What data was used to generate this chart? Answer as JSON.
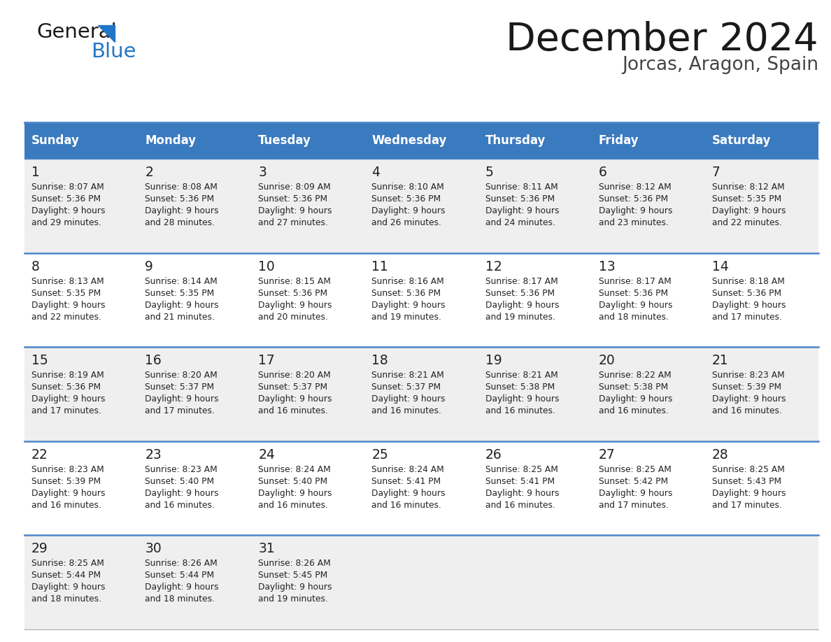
{
  "title": "December 2024",
  "subtitle": "Jorcas, Aragon, Spain",
  "header_color": "#3a7abf",
  "header_text_color": "#ffffff",
  "day_names": [
    "Sunday",
    "Monday",
    "Tuesday",
    "Wednesday",
    "Thursday",
    "Friday",
    "Saturday"
  ],
  "background_color": "#ffffff",
  "cell_bg_even": "#efefef",
  "cell_bg_odd": "#ffffff",
  "row_line_color": "#4a86c8",
  "days": [
    {
      "day": 1,
      "col": 0,
      "row": 0,
      "sunrise": "8:07 AM",
      "sunset": "5:36 PM",
      "minutes": "29"
    },
    {
      "day": 2,
      "col": 1,
      "row": 0,
      "sunrise": "8:08 AM",
      "sunset": "5:36 PM",
      "minutes": "28"
    },
    {
      "day": 3,
      "col": 2,
      "row": 0,
      "sunrise": "8:09 AM",
      "sunset": "5:36 PM",
      "minutes": "27"
    },
    {
      "day": 4,
      "col": 3,
      "row": 0,
      "sunrise": "8:10 AM",
      "sunset": "5:36 PM",
      "minutes": "26"
    },
    {
      "day": 5,
      "col": 4,
      "row": 0,
      "sunrise": "8:11 AM",
      "sunset": "5:36 PM",
      "minutes": "24"
    },
    {
      "day": 6,
      "col": 5,
      "row": 0,
      "sunrise": "8:12 AM",
      "sunset": "5:36 PM",
      "minutes": "23"
    },
    {
      "day": 7,
      "col": 6,
      "row": 0,
      "sunrise": "8:12 AM",
      "sunset": "5:35 PM",
      "minutes": "22"
    },
    {
      "day": 8,
      "col": 0,
      "row": 1,
      "sunrise": "8:13 AM",
      "sunset": "5:35 PM",
      "minutes": "22"
    },
    {
      "day": 9,
      "col": 1,
      "row": 1,
      "sunrise": "8:14 AM",
      "sunset": "5:35 PM",
      "minutes": "21"
    },
    {
      "day": 10,
      "col": 2,
      "row": 1,
      "sunrise": "8:15 AM",
      "sunset": "5:36 PM",
      "minutes": "20"
    },
    {
      "day": 11,
      "col": 3,
      "row": 1,
      "sunrise": "8:16 AM",
      "sunset": "5:36 PM",
      "minutes": "19"
    },
    {
      "day": 12,
      "col": 4,
      "row": 1,
      "sunrise": "8:17 AM",
      "sunset": "5:36 PM",
      "minutes": "19"
    },
    {
      "day": 13,
      "col": 5,
      "row": 1,
      "sunrise": "8:17 AM",
      "sunset": "5:36 PM",
      "minutes": "18"
    },
    {
      "day": 14,
      "col": 6,
      "row": 1,
      "sunrise": "8:18 AM",
      "sunset": "5:36 PM",
      "minutes": "17"
    },
    {
      "day": 15,
      "col": 0,
      "row": 2,
      "sunrise": "8:19 AM",
      "sunset": "5:36 PM",
      "minutes": "17"
    },
    {
      "day": 16,
      "col": 1,
      "row": 2,
      "sunrise": "8:20 AM",
      "sunset": "5:37 PM",
      "minutes": "17"
    },
    {
      "day": 17,
      "col": 2,
      "row": 2,
      "sunrise": "8:20 AM",
      "sunset": "5:37 PM",
      "minutes": "16"
    },
    {
      "day": 18,
      "col": 3,
      "row": 2,
      "sunrise": "8:21 AM",
      "sunset": "5:37 PM",
      "minutes": "16"
    },
    {
      "day": 19,
      "col": 4,
      "row": 2,
      "sunrise": "8:21 AM",
      "sunset": "5:38 PM",
      "minutes": "16"
    },
    {
      "day": 20,
      "col": 5,
      "row": 2,
      "sunrise": "8:22 AM",
      "sunset": "5:38 PM",
      "minutes": "16"
    },
    {
      "day": 21,
      "col": 6,
      "row": 2,
      "sunrise": "8:23 AM",
      "sunset": "5:39 PM",
      "minutes": "16"
    },
    {
      "day": 22,
      "col": 0,
      "row": 3,
      "sunrise": "8:23 AM",
      "sunset": "5:39 PM",
      "minutes": "16"
    },
    {
      "day": 23,
      "col": 1,
      "row": 3,
      "sunrise": "8:23 AM",
      "sunset": "5:40 PM",
      "minutes": "16"
    },
    {
      "day": 24,
      "col": 2,
      "row": 3,
      "sunrise": "8:24 AM",
      "sunset": "5:40 PM",
      "minutes": "16"
    },
    {
      "day": 25,
      "col": 3,
      "row": 3,
      "sunrise": "8:24 AM",
      "sunset": "5:41 PM",
      "minutes": "16"
    },
    {
      "day": 26,
      "col": 4,
      "row": 3,
      "sunrise": "8:25 AM",
      "sunset": "5:41 PM",
      "minutes": "16"
    },
    {
      "day": 27,
      "col": 5,
      "row": 3,
      "sunrise": "8:25 AM",
      "sunset": "5:42 PM",
      "minutes": "17"
    },
    {
      "day": 28,
      "col": 6,
      "row": 3,
      "sunrise": "8:25 AM",
      "sunset": "5:43 PM",
      "minutes": "17"
    },
    {
      "day": 29,
      "col": 0,
      "row": 4,
      "sunrise": "8:25 AM",
      "sunset": "5:44 PM",
      "minutes": "18"
    },
    {
      "day": 30,
      "col": 1,
      "row": 4,
      "sunrise": "8:26 AM",
      "sunset": "5:44 PM",
      "minutes": "18"
    },
    {
      "day": 31,
      "col": 2,
      "row": 4,
      "sunrise": "8:26 AM",
      "sunset": "5:45 PM",
      "minutes": "19"
    }
  ]
}
